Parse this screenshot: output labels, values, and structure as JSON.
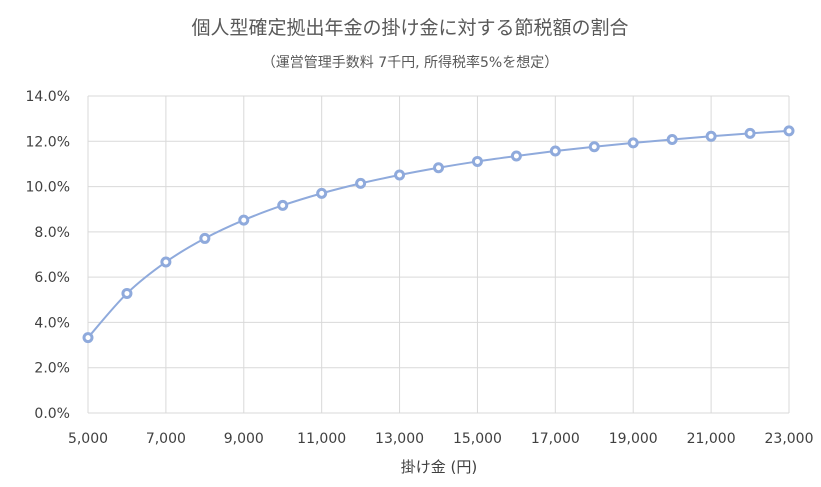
{
  "chart_data": {
    "type": "line",
    "title": "個人型確定拠出年金の掛け金に対する節税額の割合",
    "subtitle": "（運営管理手数料 7千円, 所得税率5%を想定）",
    "xlabel": "掛け金 (円)",
    "ylabel": "",
    "xlim": [
      5000,
      23000
    ],
    "ylim": [
      0,
      14
    ],
    "x_ticks": [
      "5,000",
      "7,000",
      "9,000",
      "11,000",
      "13,000",
      "15,000",
      "17,000",
      "19,000",
      "21,000",
      "23,000"
    ],
    "y_ticks": [
      "0.0%",
      "2.0%",
      "4.0%",
      "6.0%",
      "8.0%",
      "10.0%",
      "12.0%",
      "14.0%"
    ],
    "grid": true,
    "legend": "none",
    "series_color": "#8faadc",
    "x": [
      5000,
      6000,
      7000,
      8000,
      9000,
      10000,
      11000,
      12000,
      13000,
      14000,
      15000,
      16000,
      17000,
      18000,
      19000,
      20000,
      21000,
      22000,
      23000
    ],
    "values": [
      3.33,
      5.28,
      6.67,
      7.71,
      8.52,
      9.17,
      9.7,
      10.14,
      10.51,
      10.83,
      11.11,
      11.35,
      11.57,
      11.76,
      11.93,
      12.08,
      12.22,
      12.35,
      12.46
    ]
  }
}
